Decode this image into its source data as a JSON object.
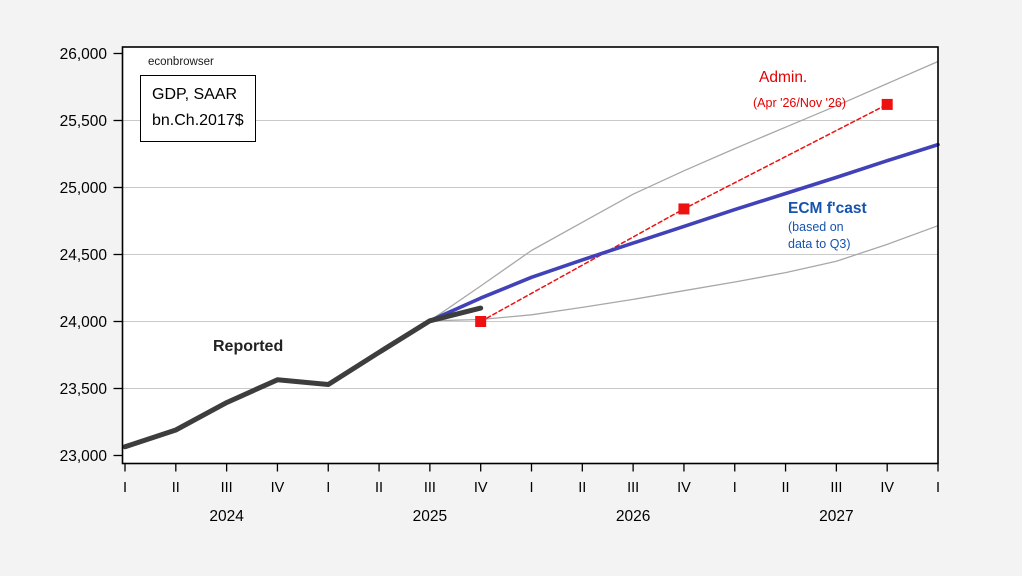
{
  "page": {
    "background_color": "#f3f3f3",
    "plot_background_color": "#ffffff",
    "frame_color": "#000000",
    "gridline_color": "#c9c9c9"
  },
  "watermark": "econbrowser",
  "unit_box": {
    "line1": "GDP, SAAR",
    "line2": "bn.Ch.2017$"
  },
  "annotations": {
    "reported_label": "Reported",
    "admin_label": "Admin.",
    "admin_sub": "(Apr '26/Nov '26)",
    "ecm_label": "ECM f'cast",
    "ecm_sub1": "(based on",
    "ecm_sub2": "data to Q3)",
    "admin_text_color": "#e60000",
    "ecm_text_color": "#1553ad"
  },
  "chart_data": {
    "type": "line",
    "title": "GDP, SAAR bn.Ch.2017$",
    "ylim": [
      23000,
      26000
    ],
    "grid_values": [
      23500,
      24000,
      24500,
      25000,
      25500
    ],
    "y_ticks": [
      {
        "label": "26,000",
        "value": 26000
      },
      {
        "label": "25,500",
        "value": 25500
      },
      {
        "label": "25,000",
        "value": 25000
      },
      {
        "label": "24,500",
        "value": 24500
      },
      {
        "label": "24,000",
        "value": 24000
      },
      {
        "label": "23,500",
        "value": 23500
      },
      {
        "label": "23,000",
        "value": 23000
      }
    ],
    "x_quarter_labels": [
      "I",
      "II",
      "III",
      "IV",
      "I",
      "II",
      "III",
      "IV",
      "I",
      "II",
      "III",
      "IV",
      "I",
      "II",
      "III",
      "IV",
      "I"
    ],
    "year_labels": [
      "2024",
      "2025",
      "2026",
      "2027"
    ],
    "series": [
      {
        "name": "Upper confidence band",
        "color": "#a8a8a8",
        "width": 1.3,
        "dashed": false,
        "markers": false,
        "start_index": 6,
        "values": [
          24005,
          24265,
          24530,
          24740,
          24950,
          25125,
          25290,
          25450,
          25610,
          25775,
          25940
        ]
      },
      {
        "name": "Lower confidence band",
        "color": "#a8a8a8",
        "width": 1.3,
        "dashed": false,
        "markers": false,
        "start_index": 6,
        "values": [
          24005,
          24015,
          24050,
          24105,
          24165,
          24230,
          24295,
          24365,
          24450,
          24575,
          24715
        ]
      },
      {
        "name": "Admin. forecast (Apr '26/Nov '26)",
        "color": "#ee1111",
        "width": 1.5,
        "dashed": true,
        "markers": true,
        "indices": [
          7,
          11,
          15
        ],
        "values": [
          24000,
          24840,
          25620
        ]
      },
      {
        "name": "ECM f'cast (based on data to Q3)",
        "color": "#4141b8",
        "width": 3.6,
        "dashed": false,
        "markers": false,
        "start_index": 6,
        "values": [
          24005,
          24175,
          24330,
          24460,
          24585,
          24710,
          24835,
          24955,
          25075,
          25200,
          25320
        ]
      },
      {
        "name": "Reported",
        "color": "#3d3d3d",
        "width": 5,
        "dashed": false,
        "markers": false,
        "start_index": 0,
        "values": [
          23065,
          23190,
          23395,
          23565,
          23530,
          23770,
          24005,
          24100
        ]
      }
    ]
  }
}
